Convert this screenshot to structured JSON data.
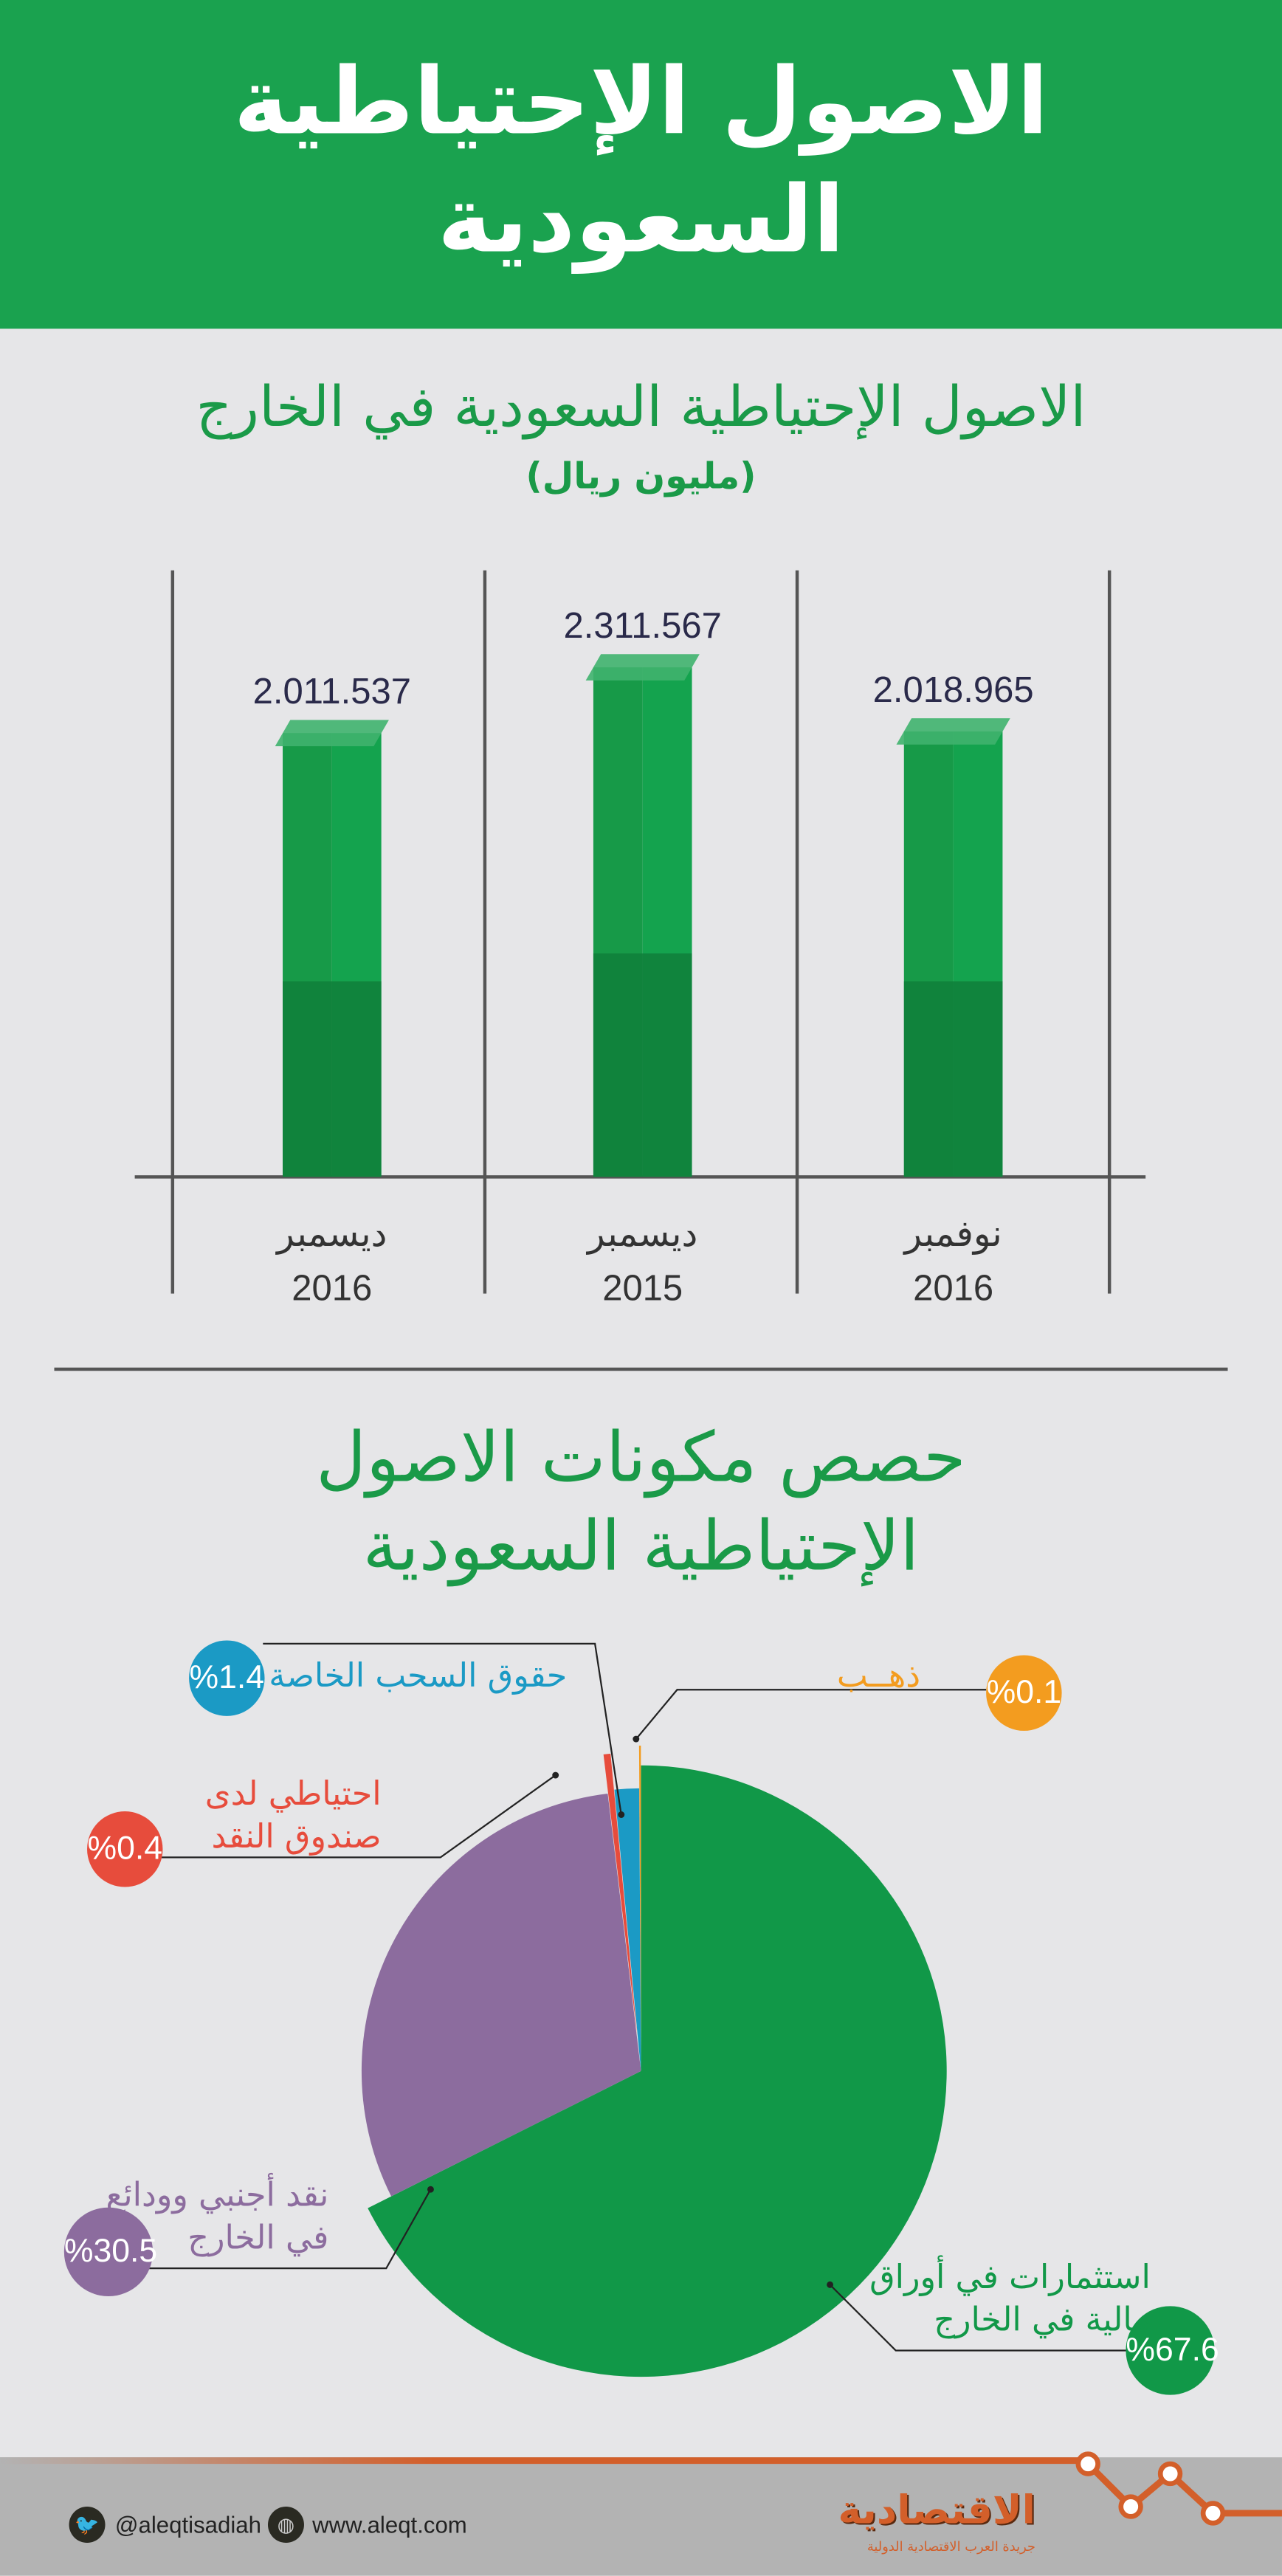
{
  "header": {
    "title_line1": "الاصول الإحتياطية",
    "title_line2": "السعودية"
  },
  "chart_data": [
    {
      "type": "bar",
      "title": "الاصول الإحتياطية السعودية في الخارج",
      "subtitle": "(مليون ريال)",
      "categories": [
        {
          "month": "ديسمبر",
          "year": "2016"
        },
        {
          "month": "ديسمبر",
          "year": "2015"
        },
        {
          "month": "نوفمبر",
          "year": "2016"
        }
      ],
      "values": [
        2011537,
        2311567,
        2018965
      ],
      "value_labels": [
        "2.011.537",
        "2.311.567",
        "2.018.965"
      ],
      "ylim": [
        0,
        2311567
      ],
      "color": "#179a48"
    },
    {
      "type": "pie",
      "title_line1": "حصص مكونات الاصول",
      "title_line2": "الإحتياطية السعودية",
      "slices": [
        {
          "label_line1": "استثمارات في أوراق",
          "label_line2": "مالية في الخارج",
          "value": 67.6,
          "text": "%67.6",
          "color": "#119848"
        },
        {
          "label_line1": "نقد أجنبي وودائع",
          "label_line2": "في الخارج",
          "value": 30.5,
          "text": "%30.5",
          "color": "#8c6c9e"
        },
        {
          "label_line1": "احتياطي لدى",
          "label_line2": "صندوق النقد",
          "value": 0.4,
          "text": "%0.4",
          "color": "#e74c3c"
        },
        {
          "label_line1": "حقوق السحب الخاصة",
          "label_line2": "",
          "value": 1.4,
          "text": "%1.4",
          "color": "#1b9ac5"
        },
        {
          "label_line1": "ذهــب",
          "label_line2": "",
          "value": 0.1,
          "text": "%0.1",
          "color": "#f39c1f"
        }
      ]
    }
  ],
  "footer": {
    "twitter": "@aleqtisadiah",
    "website": "www.aleqt.com",
    "logo": "الاقتصادية",
    "logo_tagline": "جريدة العرب الاقتصادية الدولية",
    "accent": "#d35f2a"
  }
}
